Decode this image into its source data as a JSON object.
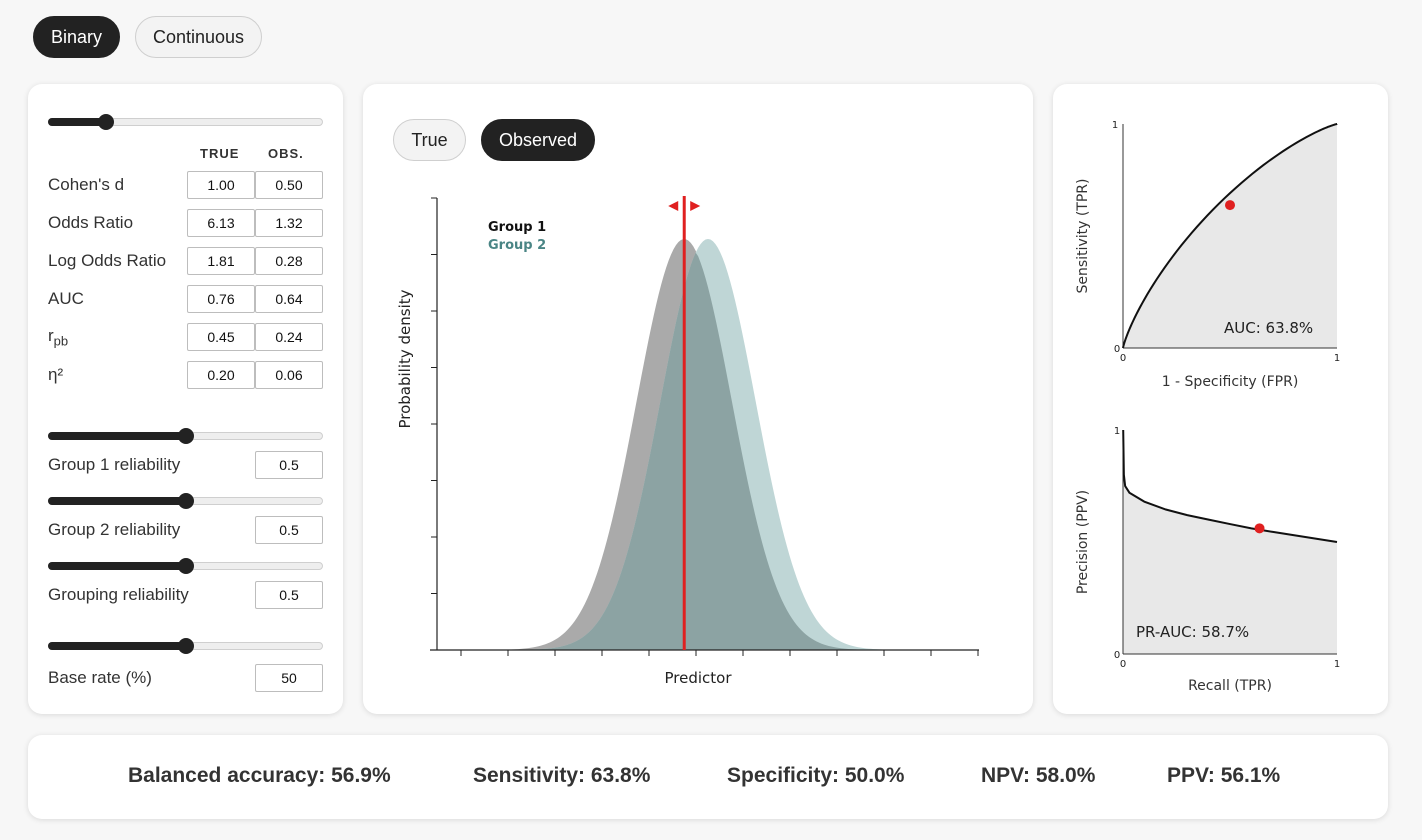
{
  "mode_tabs": {
    "binary": "Binary",
    "continuous": "Continuous"
  },
  "view_tabs": {
    "true": "True",
    "observed": "Observed"
  },
  "effect_sizes": {
    "headers": {
      "true": "TRUE",
      "obs": "OBS."
    },
    "rows": [
      {
        "label": "Cohen's d",
        "true": "1.00",
        "obs": "0.50"
      },
      {
        "label": "Odds Ratio",
        "true": "6.13",
        "obs": "1.32"
      },
      {
        "label": "Log Odds Ratio",
        "true": "1.81",
        "obs": "0.28"
      },
      {
        "label": "AUC",
        "true": "0.76",
        "obs": "0.64"
      },
      {
        "label_main": "r",
        "label_sub": "pb",
        "true": "0.45",
        "obs": "0.24"
      },
      {
        "label": "η²",
        "true": "0.20",
        "obs": "0.06"
      }
    ]
  },
  "effect_slider": {
    "fraction": 0.21
  },
  "reliability": {
    "group1": {
      "label": "Group 1 reliability",
      "value": "0.5",
      "fraction": 0.5
    },
    "group2": {
      "label": "Group 2 reliability",
      "value": "0.5",
      "fraction": 0.5
    },
    "grouping": {
      "label": "Grouping reliability",
      "value": "0.5",
      "fraction": 0.5
    }
  },
  "base_rate": {
    "label": "Base rate (%)",
    "value": "50",
    "fraction": 0.5
  },
  "chart_data": [
    {
      "type": "area",
      "title": "",
      "xlabel": "Predictor",
      "ylabel": "Probability density",
      "legend": {
        "group1": "Group 1",
        "group2": "Group 2",
        "placement": "top-left"
      },
      "series": [
        {
          "name": "Group 1",
          "distribution": "normal",
          "mean": 0,
          "sd": 1,
          "color": "#aaaaaa"
        },
        {
          "name": "Group 2",
          "distribution": "normal",
          "mean": 0.5,
          "sd": 1,
          "color": "#bfd6d6"
        }
      ],
      "overlap_color": "#8ca3a3",
      "threshold": 0,
      "threshold_color": "#e02020",
      "xlim": [
        -5.2,
        6.2
      ]
    },
    {
      "type": "line",
      "title": "",
      "xlabel": "1 - Specificity (FPR)",
      "ylabel": "Sensitivity (TPR)",
      "annotation": "AUC: 63.8%",
      "ticks": {
        "x0": "0",
        "x1": "1",
        "y0": "0",
        "y1": "1"
      },
      "point": {
        "x": 0.5,
        "y": 0.638
      },
      "xlim": [
        0,
        1
      ],
      "ylim": [
        0,
        1
      ]
    },
    {
      "type": "line",
      "title": "",
      "xlabel": "Recall (TPR)",
      "ylabel": "Precision (PPV)",
      "annotation": "PR-AUC: 58.7%",
      "ticks": {
        "x0": "0",
        "x1": "1",
        "y0": "0",
        "y1": "1"
      },
      "points": [
        [
          0.001,
          1.0
        ],
        [
          0.004,
          0.8
        ],
        [
          0.01,
          0.75
        ],
        [
          0.03,
          0.72
        ],
        [
          0.1,
          0.68
        ],
        [
          0.2,
          0.645
        ],
        [
          0.3,
          0.62
        ],
        [
          0.4,
          0.6
        ],
        [
          0.5,
          0.58
        ],
        [
          0.6,
          0.561
        ],
        [
          0.7,
          0.545
        ],
        [
          0.8,
          0.53
        ],
        [
          0.9,
          0.515
        ],
        [
          1.0,
          0.5
        ]
      ],
      "point": {
        "x": 0.638,
        "y": 0.561
      },
      "xlim": [
        0,
        1
      ],
      "ylim": [
        0,
        1
      ]
    }
  ],
  "stats": {
    "balanced_accuracy": "Balanced accuracy: 56.9%",
    "sensitivity": "Sensitivity: 63.8%",
    "specificity": "Specificity: 50.0%",
    "npv": "NPV: 58.0%",
    "ppv": "PPV: 56.1%"
  }
}
